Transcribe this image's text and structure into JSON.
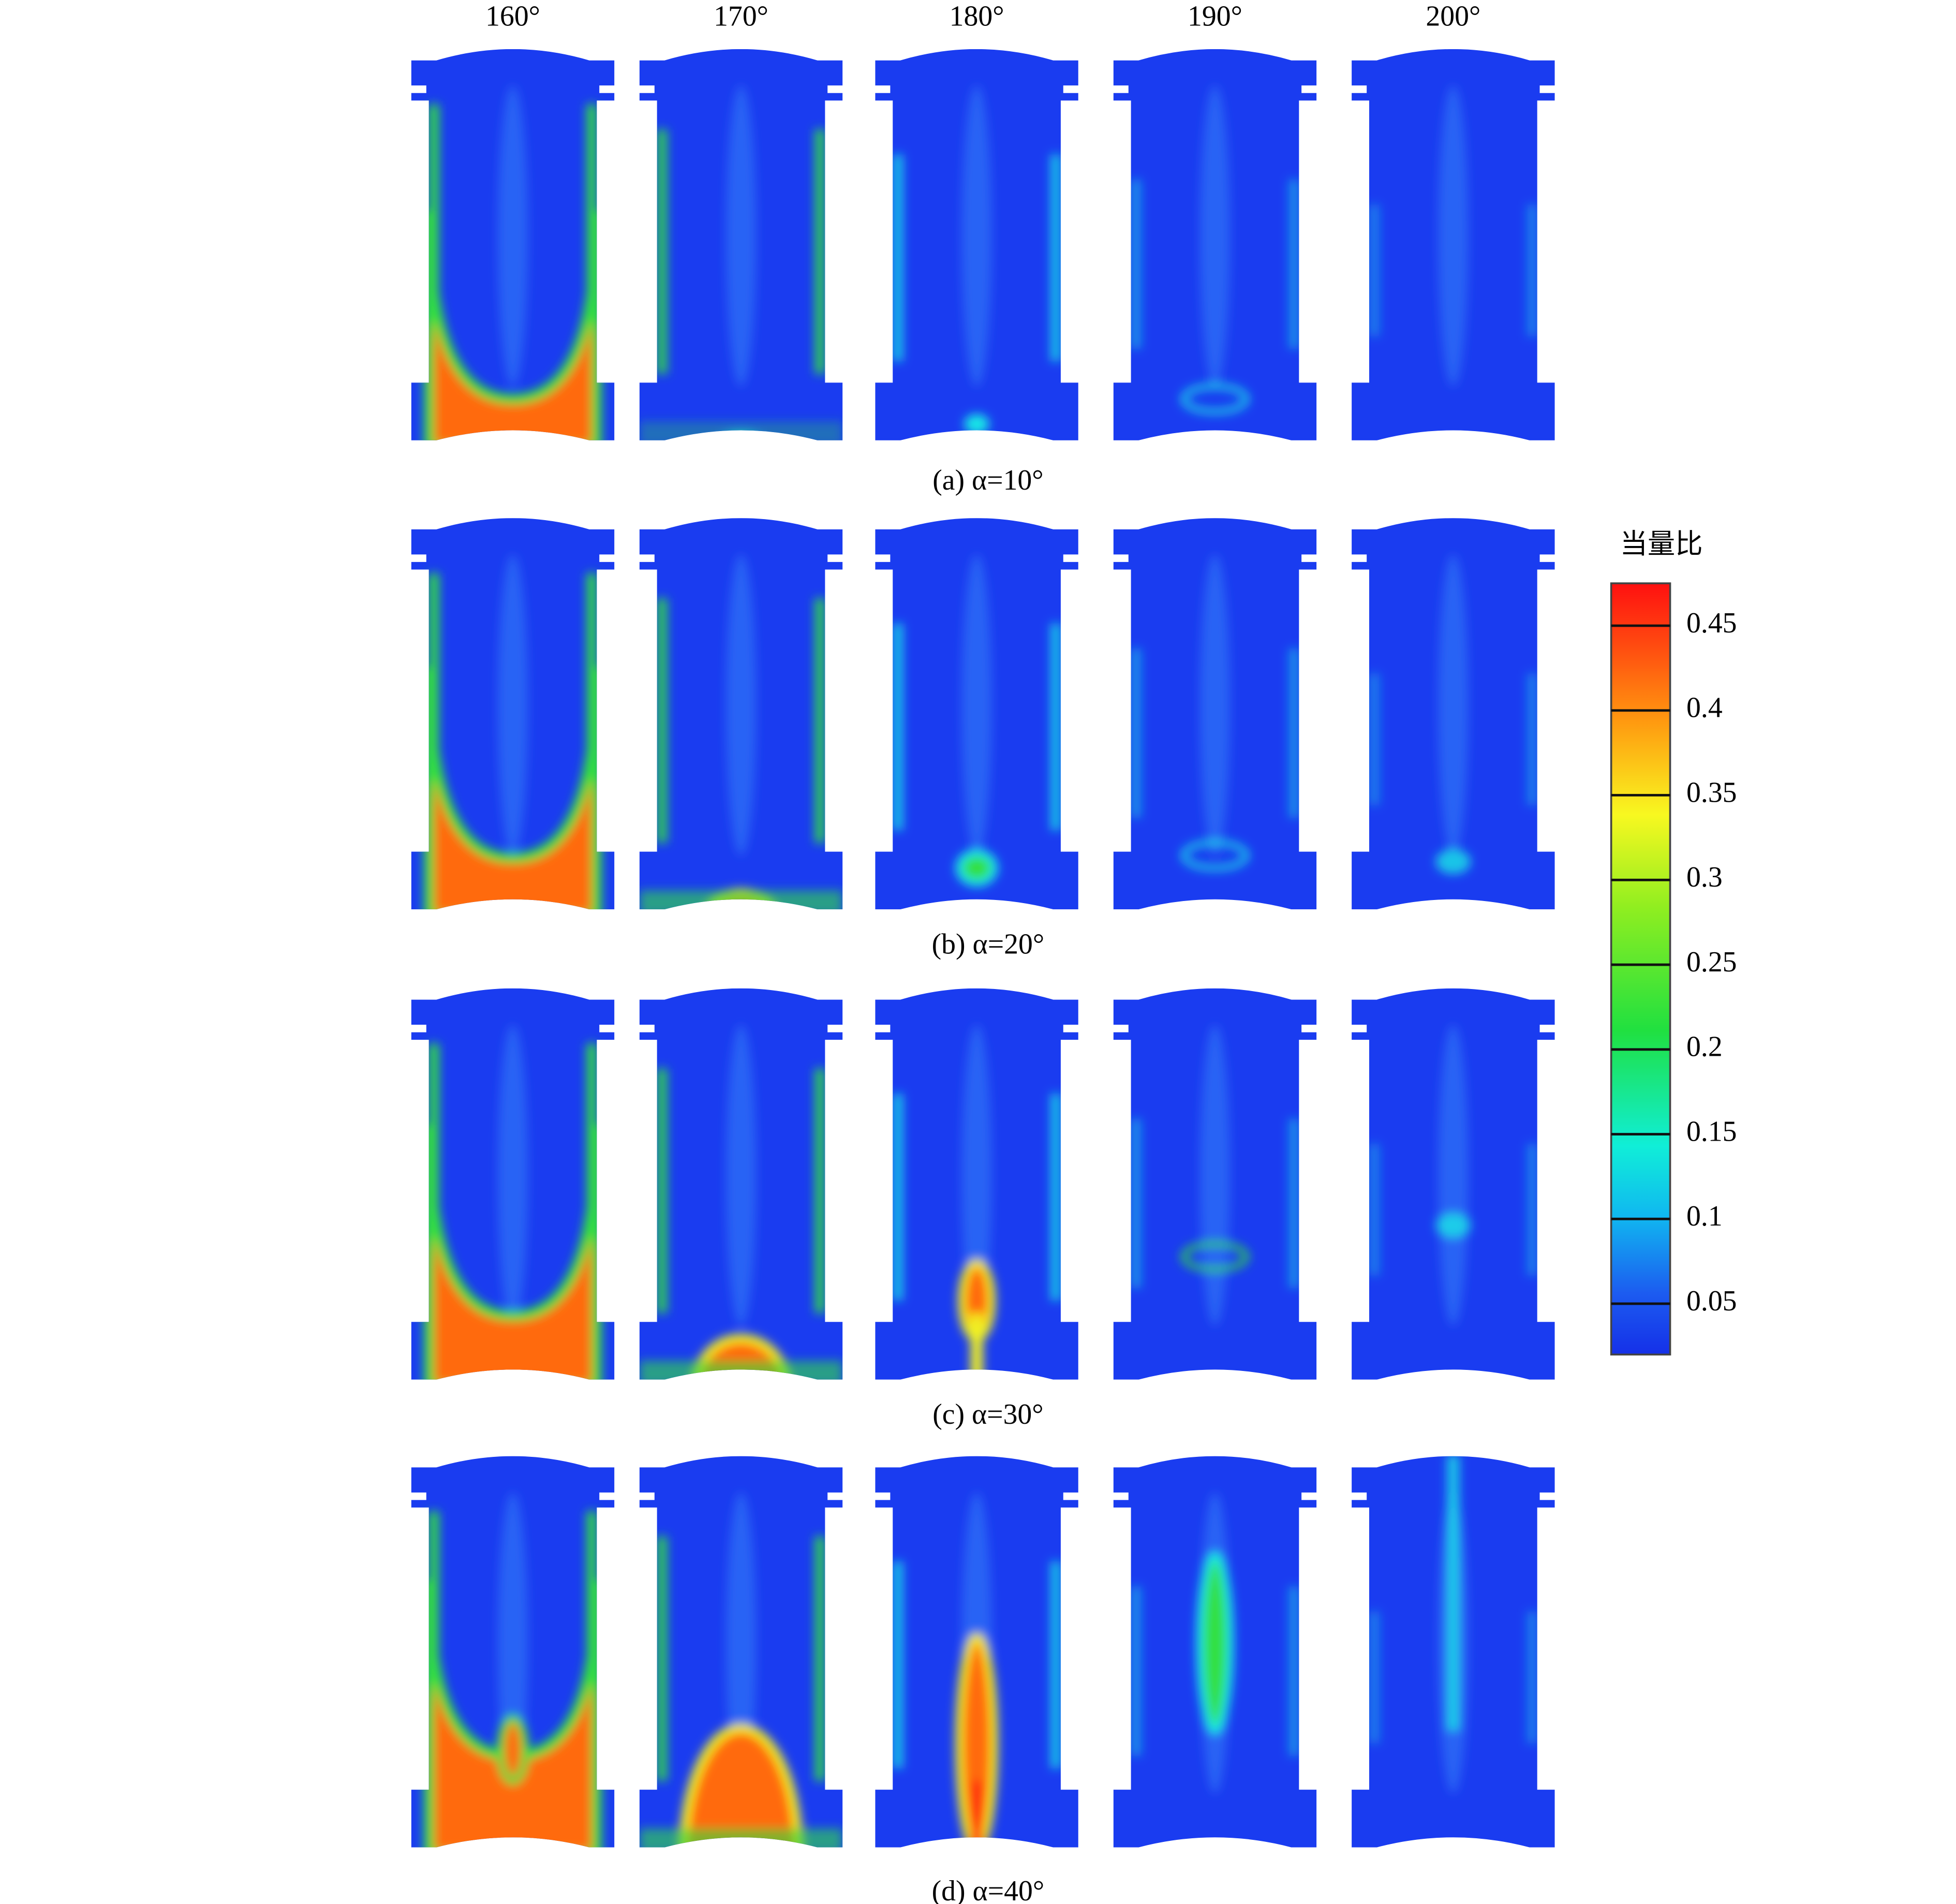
{
  "column_headers": [
    "160°",
    "170°",
    "180°",
    "190°",
    "200°"
  ],
  "row_captions": [
    "(a) α=10°",
    "(b) α=20°",
    "(c) α=30°",
    "(d) α=40°"
  ],
  "colorbar": {
    "title": "当量比",
    "lim": [
      0.02,
      0.475
    ],
    "ticks": [
      0.05,
      0.1,
      0.15,
      0.2,
      0.25,
      0.3,
      0.35,
      0.4,
      0.45
    ]
  }
}
